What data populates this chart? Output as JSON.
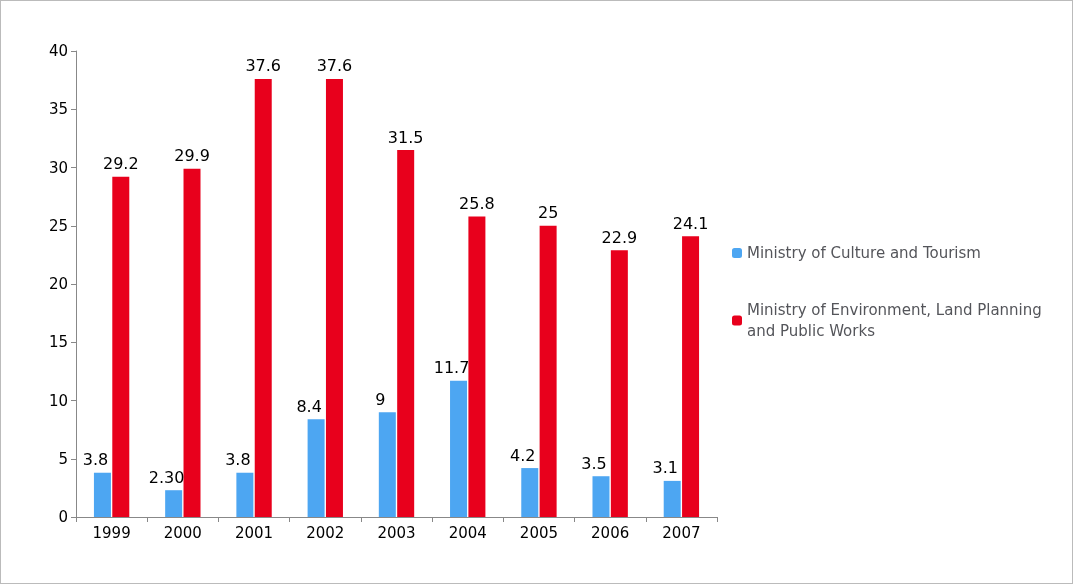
{
  "chart_data": {
    "type": "bar",
    "categories": [
      "1999",
      "2000",
      "2001",
      "2002",
      "2003",
      "2004",
      "2005",
      "2006",
      "2007"
    ],
    "series": [
      {
        "name": "Ministry of Culture and Tourism",
        "color": "#4da6f2",
        "values": [
          3.8,
          2.3,
          3.8,
          8.4,
          9,
          11.7,
          4.2,
          3.5,
          3.1
        ],
        "value_labels": [
          "3.8",
          "2.30",
          "3.8",
          "8.4",
          "9",
          "11.7",
          "4.2",
          "3.5",
          "3.1"
        ]
      },
      {
        "name": "Ministry of Environment, Land Planning and Public Works",
        "color": "#e8001c",
        "values": [
          29.2,
          29.9,
          37.6,
          37.6,
          31.5,
          25.8,
          25,
          22.9,
          24.1
        ],
        "value_labels": [
          "29.2",
          "29.9",
          "37.6",
          "37.6",
          "31.5",
          "25.8",
          "25",
          "22.9",
          "24.1"
        ]
      }
    ],
    "ylim": [
      0,
      40
    ],
    "yticks": [
      0,
      5,
      10,
      15,
      20,
      25,
      30,
      35,
      40
    ],
    "grid": false,
    "legend": "right"
  }
}
